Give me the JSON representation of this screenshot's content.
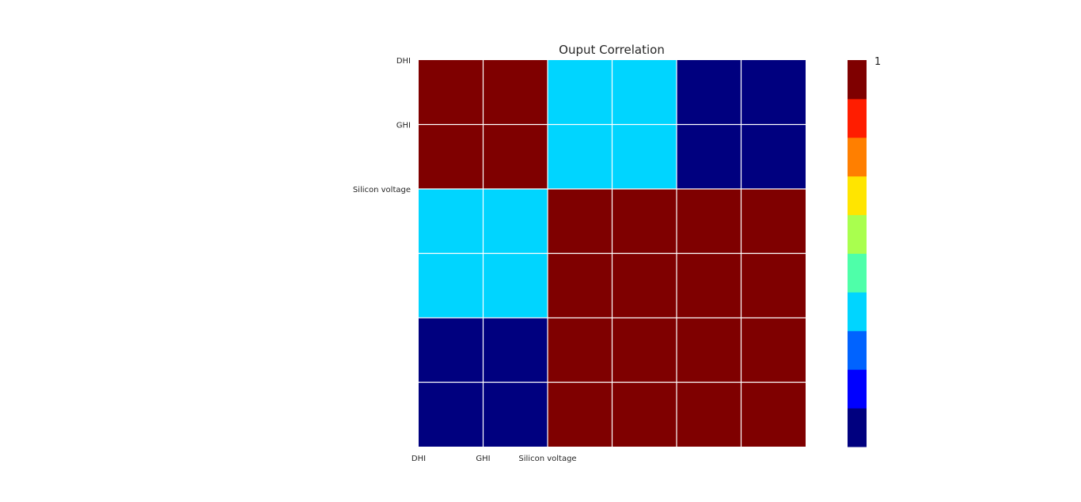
{
  "chart_data": {
    "type": "heatmap",
    "title": "Ouput Correlation",
    "x_tick_labels": [
      "DHI",
      "GHI",
      "Silicon voltage"
    ],
    "y_tick_labels": [
      "DHI",
      "GHI",
      "Silicon voltage"
    ],
    "matrix": [
      [
        1.0,
        1.0,
        0.3,
        0.3,
        0.0,
        0.0
      ],
      [
        1.0,
        1.0,
        0.3,
        0.3,
        0.0,
        0.0
      ],
      [
        0.3,
        0.3,
        1.0,
        1.0,
        1.0,
        1.0
      ],
      [
        0.3,
        0.3,
        1.0,
        1.0,
        1.0,
        1.0
      ],
      [
        0.0,
        0.0,
        1.0,
        1.0,
        1.0,
        1.0
      ],
      [
        0.0,
        0.0,
        1.0,
        1.0,
        1.0,
        1.0
      ]
    ],
    "colormap": "jet",
    "colorbar_bins": [
      "#00007f",
      "#0000ff",
      "#0063ff",
      "#00d5ff",
      "#4effa9",
      "#a9ff4e",
      "#ffe500",
      "#ff7f00",
      "#ff1d00",
      "#7f0000"
    ],
    "colorbar_range": [
      0,
      1
    ],
    "colorbar_tick_labels": [
      "1"
    ],
    "grid": true,
    "grid_color": "#ffffff"
  }
}
